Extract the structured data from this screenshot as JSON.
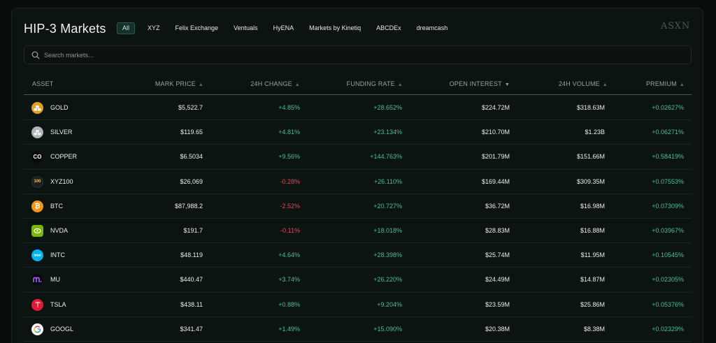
{
  "header": {
    "title": "HIP-3 Markets",
    "brand": "ASXN",
    "filters": [
      "All",
      "XYZ",
      "Felix Exchange",
      "Ventuals",
      "HyENA",
      "Markets by Kinetiq",
      "ABCDEx",
      "dreamcash"
    ],
    "active_filter": "All"
  },
  "search": {
    "placeholder": "Search markets..."
  },
  "columns": {
    "asset": "ASSET",
    "mark_price": "MARK PRICE",
    "change_24h": "24H CHANGE",
    "funding_rate": "FUNDING RATE",
    "open_interest": "OPEN INTEREST",
    "volume_24h": "24H VOLUME",
    "premium": "PREMIUM"
  },
  "sort": {
    "column": "open_interest",
    "direction": "desc"
  },
  "rows": [
    {
      "asset": "GOLD",
      "icon": "gold-icon",
      "mark_price": "$5,522.7",
      "change_24h": "+4.85%",
      "funding_rate": "+28.652%",
      "open_interest": "$224.72M",
      "volume_24h": "$318.63M",
      "premium": "+0.02627%"
    },
    {
      "asset": "SILVER",
      "icon": "silver-icon",
      "mark_price": "$119.65",
      "change_24h": "+4.81%",
      "funding_rate": "+23.134%",
      "open_interest": "$210.70M",
      "volume_24h": "$1.23B",
      "premium": "+0.06271%"
    },
    {
      "asset": "COPPER",
      "icon": "copper-icon",
      "mark_price": "$6.5034",
      "change_24h": "+9.56%",
      "funding_rate": "+144.763%",
      "open_interest": "$201.79M",
      "volume_24h": "$151.66M",
      "premium": "+0.58419%"
    },
    {
      "asset": "XYZ100",
      "icon": "xyz100-icon",
      "mark_price": "$26,069",
      "change_24h": "-0.28%",
      "funding_rate": "+26.110%",
      "open_interest": "$169.44M",
      "volume_24h": "$309.35M",
      "premium": "+0.07553%"
    },
    {
      "asset": "BTC",
      "icon": "bitcoin-icon",
      "mark_price": "$87,988.2",
      "change_24h": "-2.52%",
      "funding_rate": "+20.727%",
      "open_interest": "$36.72M",
      "volume_24h": "$16.98M",
      "premium": "+0.07309%"
    },
    {
      "asset": "NVDA",
      "icon": "nvidia-icon",
      "mark_price": "$191.7",
      "change_24h": "-0.11%",
      "funding_rate": "+18.018%",
      "open_interest": "$28.83M",
      "volume_24h": "$16.88M",
      "premium": "+0.03967%"
    },
    {
      "asset": "INTC",
      "icon": "intel-icon",
      "mark_price": "$48.119",
      "change_24h": "+4.64%",
      "funding_rate": "+28.398%",
      "open_interest": "$25.74M",
      "volume_24h": "$11.95M",
      "premium": "+0.10545%"
    },
    {
      "asset": "MU",
      "icon": "micron-icon",
      "mark_price": "$440.47",
      "change_24h": "+3.74%",
      "funding_rate": "+26.220%",
      "open_interest": "$24.49M",
      "volume_24h": "$14.87M",
      "premium": "+0.02305%"
    },
    {
      "asset": "TSLA",
      "icon": "tesla-icon",
      "mark_price": "$438.11",
      "change_24h": "+0.88%",
      "funding_rate": "+9.204%",
      "open_interest": "$23.59M",
      "volume_24h": "$25.86M",
      "premium": "+0.05376%"
    },
    {
      "asset": "GOOGL",
      "icon": "google-icon",
      "mark_price": "$341.47",
      "change_24h": "+1.49%",
      "funding_rate": "+15.090%",
      "open_interest": "$20.38M",
      "volume_24h": "$8.38M",
      "premium": "+0.02329%"
    }
  ],
  "colors": {
    "positive": "#4cbf94",
    "negative": "#e0495f",
    "accent": "#2c5a51"
  }
}
